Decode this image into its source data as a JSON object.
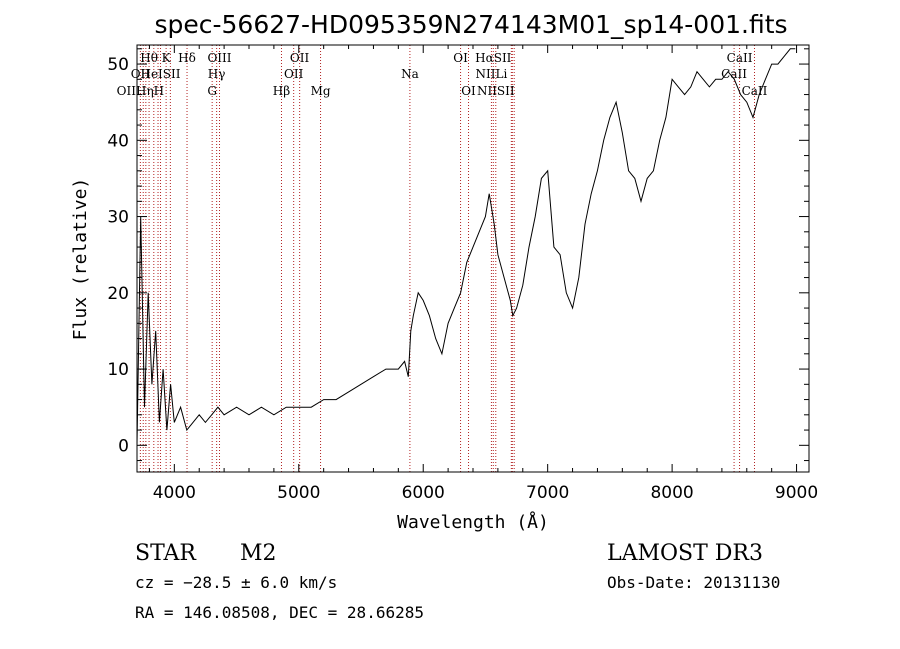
{
  "chart_data": {
    "type": "line",
    "title": "spec-56627-HD095359N274143M01_sp14-001.fits",
    "xlabel": "Wavelength (Å)",
    "ylabel": "Flux (relative)",
    "xlim": [
      3700,
      9100
    ],
    "ylim": [
      -3.5,
      52.5
    ],
    "x_ticks": [
      4000,
      5000,
      6000,
      7000,
      8000,
      9000
    ],
    "y_ticks": [
      0,
      10,
      20,
      30,
      40,
      50
    ],
    "grid": false,
    "line_color": "#000000",
    "marker_color": "#b22222",
    "series": [
      {
        "x": [
          3700,
          3730,
          3760,
          3790,
          3820,
          3850,
          3880,
          3910,
          3940,
          3970,
          4000,
          4050,
          4100,
          4150,
          4200,
          4250,
          4300,
          4350,
          4400,
          4500,
          4600,
          4700,
          4800,
          4900,
          5000,
          5100,
          5200,
          5300,
          5400,
          5500,
          5600,
          5700,
          5800,
          5850,
          5880,
          5900,
          5920,
          5960,
          6000,
          6050,
          6100,
          6150,
          6200,
          6250,
          6300,
          6350,
          6400,
          6450,
          6500,
          6530,
          6550,
          6570,
          6600,
          6650,
          6700,
          6720,
          6750,
          6800,
          6850,
          6900,
          6950,
          7000,
          7050,
          7100,
          7150,
          7200,
          7250,
          7300,
          7350,
          7400,
          7450,
          7500,
          7550,
          7600,
          7650,
          7700,
          7750,
          7800,
          7850,
          7900,
          7950,
          8000,
          8050,
          8100,
          8150,
          8200,
          8250,
          8300,
          8350,
          8400,
          8450,
          8500,
          8550,
          8600,
          8650,
          8700,
          8750,
          8800,
          8850,
          8900,
          8950,
          8990
        ],
        "y": [
          0,
          30,
          5,
          20,
          8,
          15,
          3,
          10,
          2,
          8,
          3,
          5,
          2,
          3,
          4,
          3,
          4,
          5,
          4,
          5,
          4,
          5,
          4,
          5,
          5,
          5,
          6,
          6,
          7,
          8,
          9,
          10,
          10,
          11,
          9,
          15,
          17,
          20,
          19,
          17,
          14,
          12,
          16,
          18,
          20,
          24,
          26,
          28,
          30,
          33,
          31,
          29,
          25,
          22,
          19,
          17,
          18,
          21,
          26,
          30,
          35,
          36,
          26,
          25,
          20,
          18,
          22,
          29,
          33,
          36,
          40,
          43,
          45,
          41,
          36,
          35,
          32,
          35,
          36,
          40,
          43,
          48,
          47,
          46,
          47,
          49,
          48,
          47,
          48,
          48,
          49,
          48,
          46,
          45,
          43,
          46,
          48,
          50,
          50,
          51,
          52,
          52
        ]
      }
    ],
    "line_markers": [
      {
        "label": "Hθ",
        "wave": 3797,
        "row": 1
      },
      {
        "label": "K",
        "wave": 3934,
        "row": 1
      },
      {
        "label": "Hδ",
        "wave": 4102,
        "row": 1
      },
      {
        "label": "OIII",
        "wave": 4363,
        "row": 1
      },
      {
        "label": "OII",
        "wave": 5007,
        "row": 1
      },
      {
        "label": "OI",
        "wave": 6300,
        "row": 1
      },
      {
        "label": "HαSII",
        "wave": 6563,
        "row": 1
      },
      {
        "label": "CaII",
        "wave": 8542,
        "row": 1
      },
      {
        "label": "OII",
        "wave": 3727,
        "row": 2
      },
      {
        "label": "HeISII",
        "wave": 3889,
        "row": 2
      },
      {
        "label": "Hγ",
        "wave": 4340,
        "row": 2
      },
      {
        "label": "OII",
        "wave": 4959,
        "row": 2
      },
      {
        "label": "Na",
        "wave": 5893,
        "row": 2
      },
      {
        "label": "NIILi",
        "wave": 6548,
        "row": 2
      },
      {
        "label": "CaII",
        "wave": 8498,
        "row": 2
      },
      {
        "label": "OIIHηH",
        "wave": 3727,
        "row": 3
      },
      {
        "label": "G",
        "wave": 4304,
        "row": 3
      },
      {
        "label": "Hβ",
        "wave": 4861,
        "row": 3
      },
      {
        "label": "Mg",
        "wave": 5175,
        "row": 3
      },
      {
        "label": "OI",
        "wave": 6364,
        "row": 3
      },
      {
        "label": "NIISII",
        "wave": 6583,
        "row": 3
      },
      {
        "label": "CaII",
        "wave": 8662,
        "row": 3
      }
    ],
    "marker_lines": [
      3727,
      3750,
      3771,
      3797,
      3835,
      3869,
      3889,
      3934,
      3968,
      4102,
      4304,
      4340,
      4363,
      4861,
      4959,
      5007,
      5175,
      5893,
      6300,
      6364,
      6548,
      6563,
      6583,
      6708,
      6716,
      6731,
      8498,
      8542,
      8662
    ]
  },
  "info": {
    "object_type": "STAR",
    "subclass": "M2",
    "survey": "LAMOST DR3",
    "cz": "cz = −28.5 ± 6.0 km/s",
    "obs_date": "Obs-Date: 20131130",
    "coords": "RA = 146.08508, DEC =  28.66285"
  }
}
